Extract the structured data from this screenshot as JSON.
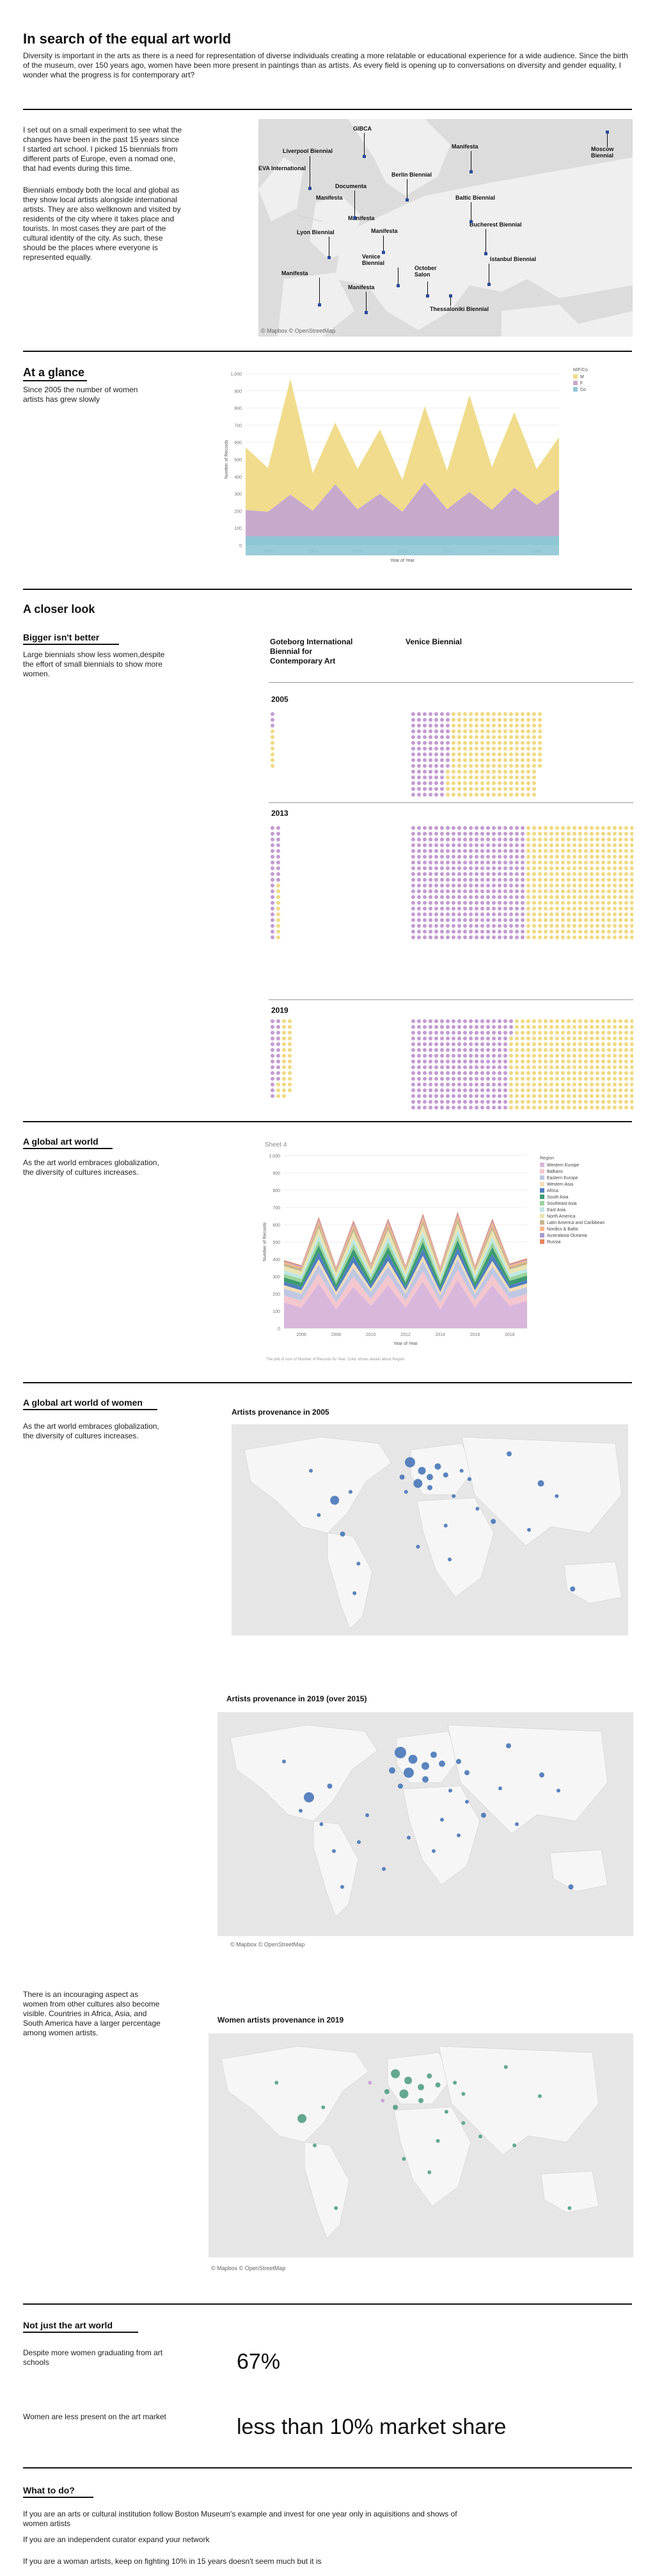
{
  "header": {
    "title": "In search of the equal art world",
    "intro": "Diversity is important in the arts as there is a need for representation of diverse individuals creating a more relatable or educational experience for a wide audience. Since the birth of the museum, over 150 years ago, women have been more present in paintings than as artists. As every field is opening up to conversations on diversity and gender equality, I wonder what the progress is for contemporary art?"
  },
  "experiment": {
    "p1": "I set out on a small experiment to see what the changes have been in the past 15 years since I started art school. I picked 15 biennials from different parts of Europe, even a nomad one, that had events during this time.",
    "p2": "Biennials embody both the local and global as they show local artists alongside international artists. They are also wellknown and visited by residents of the city where it takes place and tourists. In most cases they are part of the cultural identity of the city. As such, these should be the places where everyone is represented equally.",
    "map_labels": [
      "GIBCA",
      "Liverpool Biennial",
      "EVA International",
      "Manifesta",
      "Moscow Biennial",
      "Berlin Biennial",
      "Documenta",
      "Manifesta",
      "Baltic Biennial",
      "Manifesta",
      "Lyon Biennial",
      "Manifesta",
      "Bucherest Biennial",
      "Istanbul Biennial",
      "Venice Biennial",
      "October Salon",
      "Manifesta",
      "Manifesta",
      "Thessaloniki Biennial"
    ],
    "map_credit": "© Mapbox © OpenStreetMap"
  },
  "glance": {
    "title": "At a glance",
    "text": "Since 2005 the number of women artists has grew slowly"
  },
  "chart_data": [
    {
      "type": "area",
      "title": "",
      "xlabel": "Year of Year",
      "ylabel": "Number of Records",
      "ylim": [
        0,
        1000
      ],
      "yticks": [
        0,
        100,
        200,
        300,
        400,
        500,
        600,
        700,
        800,
        900,
        1000
      ],
      "yticklabels": [
        "0",
        "100",
        "200",
        "300",
        "400",
        "500",
        "600",
        "700",
        "800",
        "900",
        "1,000"
      ],
      "xticklabels": [
        "2006",
        "2008",
        "2010",
        "2012",
        "2014",
        "2016",
        "2018"
      ],
      "x": [
        2005,
        2006,
        2007,
        2008,
        2009,
        2010,
        2011,
        2012,
        2013,
        2014,
        2015,
        2016,
        2017,
        2018,
        2019
      ],
      "legend_title": "M/F/Co",
      "series": [
        {
          "name": "Co",
          "color": "#8ec6d4",
          "values": [
            35,
            35,
            35,
            35,
            35,
            35,
            35,
            35,
            35,
            35,
            35,
            35,
            35,
            35,
            35
          ]
        },
        {
          "name": "F",
          "color": "#c7a9cc",
          "values": [
            170,
            160,
            260,
            165,
            320,
            175,
            265,
            160,
            330,
            175,
            275,
            170,
            300,
            200,
            290
          ]
        },
        {
          "name": "M",
          "color": "#f0dc8c",
          "values": [
            365,
            255,
            675,
            220,
            360,
            235,
            375,
            185,
            445,
            225,
            565,
            250,
            440,
            210,
            305
          ]
        }
      ]
    },
    {
      "type": "area",
      "title": "Sheet 4",
      "xlabel": "Year of Year",
      "ylabel": "Number of Records",
      "ylim": [
        0,
        1000
      ],
      "yticks": [
        0,
        100,
        200,
        300,
        400,
        500,
        600,
        700,
        800,
        900,
        1000
      ],
      "yticklabels": [
        "0",
        "100",
        "200",
        "300",
        "400",
        "500",
        "600",
        "700",
        "800",
        "900",
        "1,000"
      ],
      "xticklabels": [
        "2006",
        "2008",
        "2010",
        "2012",
        "2014",
        "2016",
        "2018"
      ],
      "x": [
        2005,
        2006,
        2007,
        2008,
        2009,
        2010,
        2011,
        2012,
        2013,
        2014,
        2015,
        2016,
        2017,
        2018,
        2019
      ],
      "legend_title": "Region",
      "series": [
        {
          "name": "Western Europe",
          "color": "#d9b7dc",
          "values": [
            150,
            120,
            260,
            110,
            240,
            130,
            250,
            120,
            270,
            110,
            280,
            120,
            250,
            130,
            160
          ]
        },
        {
          "name": "Balkans",
          "color": "#f4c6ce",
          "values": [
            40,
            40,
            60,
            40,
            60,
            40,
            60,
            40,
            60,
            40,
            60,
            40,
            60,
            40,
            40
          ]
        },
        {
          "name": "Eastern Europe",
          "color": "#c0c7e2",
          "values": [
            40,
            40,
            50,
            40,
            50,
            40,
            50,
            40,
            60,
            40,
            60,
            40,
            50,
            40,
            40
          ]
        },
        {
          "name": "Western Asia",
          "color": "#f6ddb8",
          "values": [
            20,
            20,
            30,
            20,
            30,
            20,
            30,
            20,
            30,
            20,
            30,
            20,
            30,
            20,
            20
          ]
        },
        {
          "name": "Africa",
          "color": "#4f7fbf",
          "values": [
            20,
            20,
            40,
            20,
            40,
            20,
            40,
            20,
            40,
            20,
            40,
            20,
            40,
            20,
            20
          ]
        },
        {
          "name": "South Asia",
          "color": "#3c9a70",
          "values": [
            25,
            25,
            40,
            25,
            40,
            25,
            40,
            25,
            40,
            25,
            40,
            25,
            40,
            25,
            25
          ]
        },
        {
          "name": "Southeast Asia",
          "color": "#9ad39b",
          "values": [
            20,
            20,
            30,
            20,
            30,
            20,
            30,
            20,
            30,
            20,
            30,
            20,
            30,
            20,
            20
          ]
        },
        {
          "name": "East Asia",
          "color": "#bfe7e4",
          "values": [
            20,
            20,
            30,
            20,
            30,
            20,
            30,
            20,
            30,
            20,
            30,
            20,
            30,
            20,
            20
          ]
        },
        {
          "name": "North America",
          "color": "#e9e3b2",
          "values": [
            25,
            25,
            40,
            25,
            40,
            25,
            40,
            25,
            40,
            25,
            40,
            25,
            40,
            25,
            25
          ]
        },
        {
          "name": "Latin America and Caribbean",
          "color": "#c7b48c",
          "values": [
            15,
            15,
            25,
            15,
            25,
            15,
            25,
            15,
            25,
            15,
            25,
            15,
            25,
            15,
            15
          ]
        },
        {
          "name": "Nordics & Baltic",
          "color": "#f5b48a",
          "values": [
            10,
            10,
            20,
            10,
            20,
            10,
            20,
            10,
            20,
            10,
            20,
            10,
            20,
            10,
            10
          ]
        },
        {
          "name": "Australasia Oceania",
          "color": "#a99ad0",
          "values": [
            5,
            5,
            10,
            5,
            10,
            5,
            10,
            5,
            10,
            5,
            10,
            5,
            10,
            5,
            5
          ]
        },
        {
          "name": "Russia",
          "color": "#e7845a",
          "values": [
            5,
            5,
            10,
            5,
            10,
            5,
            10,
            5,
            10,
            5,
            10,
            5,
            10,
            5,
            5
          ]
        }
      ],
      "footnote": "The plot of sum of Number of Records for Year. Color shows details about Region."
    }
  ],
  "closer": {
    "title": "A closer look",
    "subtitle": "Bigger isn't better",
    "text": "Large biennials show less women,despite the effort of small biennials to show more women.",
    "col1": "Goteborg International Biennial for Contemporary Art",
    "col2": "Venice Biennial",
    "rows": [
      {
        "year": "2005",
        "g_f": 3,
        "g_m": 7,
        "v_f": 100,
        "v_m": 240,
        "v_rows": 15,
        "g_rows": 15
      },
      {
        "year": "2013",
        "g_f": 30,
        "g_m": 10,
        "v_f": 400,
        "v_m": 400,
        "v_rows": 20,
        "g_rows": 20
      },
      {
        "year": "2019",
        "g_f": 25,
        "g_m": 30,
        "v_f": 275,
        "v_m": 380,
        "v_rows": 16,
        "g_rows": 16
      }
    ],
    "colors": {
      "female": "#c39bd1",
      "male": "#f0d980"
    }
  },
  "global": {
    "title": "A global art world",
    "text": "As the art world embraces globalization, the diversity of cultures increases."
  },
  "women": {
    "title": "A global art world of women",
    "text": "As the art world embraces globalization, the diversity of cultures increases.",
    "map1_title": "Artists provenance in 2005",
    "map2_title": "Artists provenance in 2019 (over 2015)",
    "map3_title": "Women artists provenance in 2019",
    "map3_text": "There is an incouraging aspect as women from other cultures also become visible. Countries in Africa, Asia, and South America have a larger percentage among women artists.",
    "credit": "© Mapbox © OpenStreetMap",
    "blue": "#3e6fb5",
    "green": "#4a9a7e"
  },
  "notjust": {
    "title": "Not just the art world",
    "q1": "Despite more women graduating from art schools",
    "stat1": "67%",
    "q2": "Women are less present on the art market",
    "stat2": "less than 10% market share"
  },
  "todo": {
    "title": "What to do?",
    "i1": "If you are an arts or cultural institution follow Boston Museum's example and invest for one year only in aquisitions and shows of women artists",
    "i2": "If you are an independent curator expand your network",
    "i3": "If you are a woman artists, keep on fighting 10% in 15 years doesn't seem much but it is"
  }
}
